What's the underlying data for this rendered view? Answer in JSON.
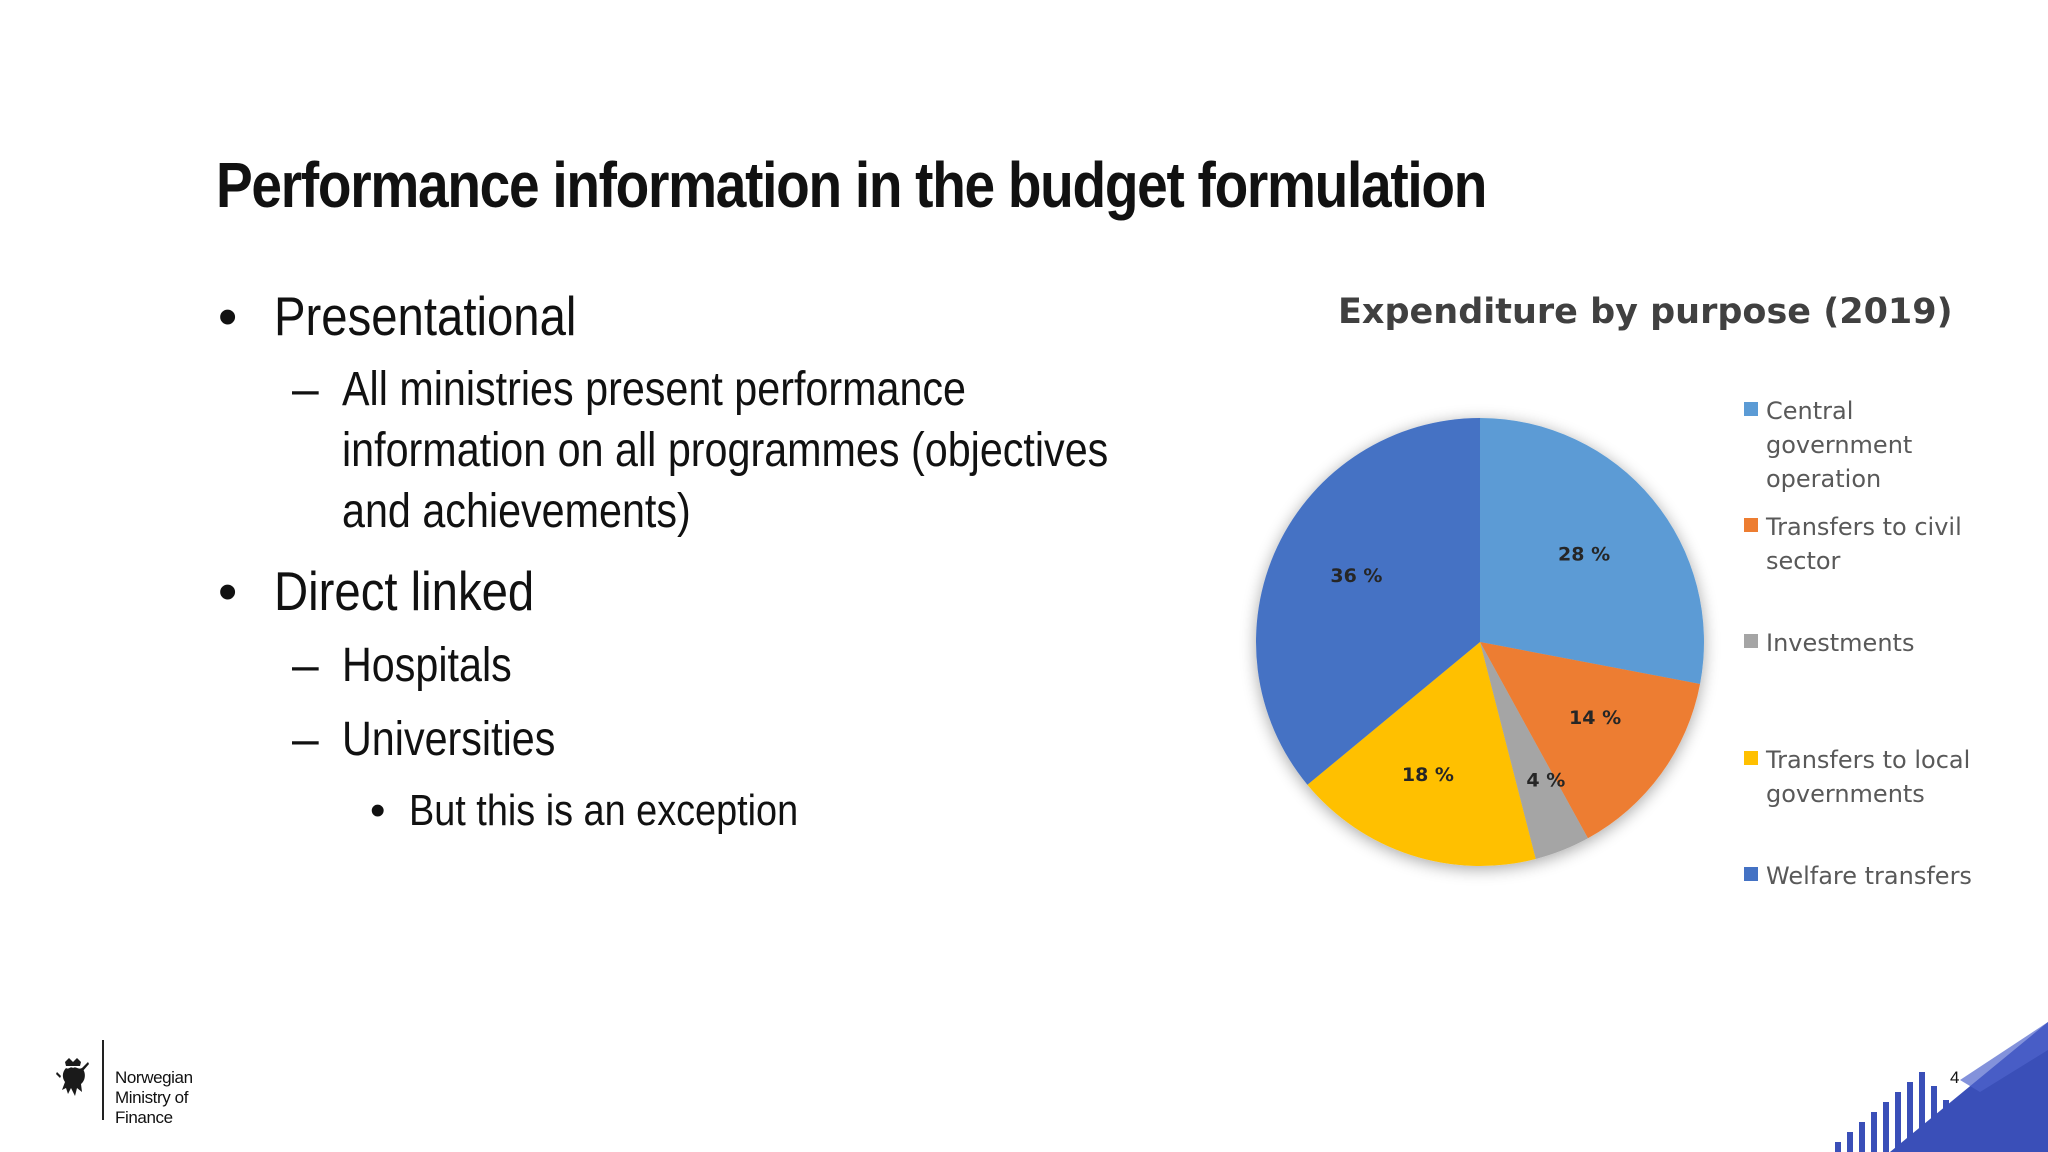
{
  "slide": {
    "title": "Performance information in the budget formulation",
    "bullets": [
      {
        "marker": "•",
        "text": "Presentational"
      },
      {
        "marker": "–",
        "text_lines": [
          "All ministries present performance",
          "information on all programmes (objectives",
          "and achievements)"
        ]
      },
      {
        "marker": "•",
        "text": "Direct linked"
      },
      {
        "marker": "–",
        "text": "Hospitals"
      },
      {
        "marker": "–",
        "text": "Universities"
      },
      {
        "marker": "•",
        "text": "But this is an exception"
      }
    ],
    "footer": {
      "ministry": "Norwegian Ministry of Finance",
      "page_number": "4",
      "logo_icon": "norwegian-lion-crest-icon"
    }
  },
  "chart_data": {
    "type": "pie",
    "title": "Expenditure by purpose (2019)",
    "categories": [
      "Central government operation",
      "Transfers to civil sector",
      "Investments",
      "Transfers to local governments",
      "Welfare transfers"
    ],
    "values": [
      28,
      14,
      4,
      18,
      36
    ],
    "labels": [
      "28 %",
      "14 %",
      "4 %",
      "18 %",
      "36 %"
    ],
    "colors": [
      "#5B9BD5",
      "#ED7D31",
      "#A5A5A5",
      "#FFC000",
      "#4472C4"
    ],
    "legend_position": "right",
    "start_angle_deg": 0,
    "direction": "clockwise"
  }
}
